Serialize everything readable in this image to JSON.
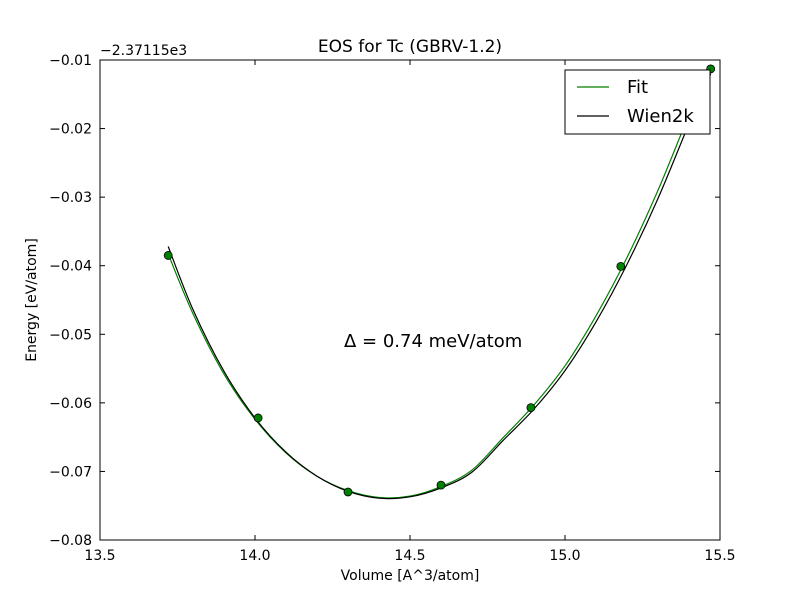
{
  "chart_data": {
    "type": "line",
    "title": "EOS for Tc (GBRV-1.2)",
    "xlabel": "Volume [A^3/atom]",
    "ylabel": "Energy [eV/atom]",
    "y_offset_label": "−2.37115e3",
    "y_offset": -2371.15,
    "xlim": [
      13.5,
      15.5
    ],
    "ylim": [
      -0.08,
      -0.01
    ],
    "xticks": [
      13.5,
      14.0,
      14.5,
      15.0,
      15.5
    ],
    "xtick_labels": [
      "13.5",
      "14.0",
      "14.5",
      "15.0",
      "15.5"
    ],
    "yticks": [
      -0.08,
      -0.07,
      -0.06,
      -0.05,
      -0.04,
      -0.03,
      -0.02,
      -0.01
    ],
    "ytick_labels": [
      "−0.08",
      "−0.07",
      "−0.06",
      "−0.05",
      "−0.04",
      "−0.03",
      "−0.02",
      "−0.01"
    ],
    "grid": false,
    "legend_position": "top-right",
    "annotation": "Δ = 0.74 meV/atom",
    "series": [
      {
        "name": "Fit",
        "kind": "line",
        "color": "#008000",
        "x": [
          13.72,
          13.8,
          13.9,
          14.0,
          14.1,
          14.2,
          14.3,
          14.4,
          14.5,
          14.6,
          14.7,
          14.8,
          14.9,
          15.0,
          15.1,
          15.2,
          15.3,
          15.4,
          15.47
        ],
        "y": [
          -0.0383,
          -0.047,
          -0.0558,
          -0.0624,
          -0.0673,
          -0.0707,
          -0.0728,
          -0.0738,
          -0.0736,
          -0.0722,
          -0.0698,
          -0.0651,
          -0.0603,
          -0.0546,
          -0.0473,
          -0.0388,
          -0.029,
          -0.018,
          -0.0108
        ]
      },
      {
        "name": "Wien2k",
        "kind": "line",
        "color": "#000000",
        "x": [
          13.72,
          13.8,
          13.9,
          14.0,
          14.1,
          14.2,
          14.3,
          14.4,
          14.5,
          14.6,
          14.7,
          14.8,
          14.9,
          15.0,
          15.1,
          15.2,
          15.3,
          15.4,
          15.47
        ],
        "y": [
          -0.0372,
          -0.0464,
          -0.0554,
          -0.0622,
          -0.0672,
          -0.0707,
          -0.0729,
          -0.0739,
          -0.0737,
          -0.0724,
          -0.0701,
          -0.0655,
          -0.0609,
          -0.0553,
          -0.0482,
          -0.0398,
          -0.0302,
          -0.0193,
          -0.012
        ]
      },
      {
        "kind": "scatter",
        "color": "#008000",
        "x": [
          13.72,
          14.01,
          14.3,
          14.6,
          14.89,
          15.18,
          15.47
        ],
        "y": [
          -0.0385,
          -0.0622,
          -0.073,
          -0.072,
          -0.0607,
          -0.0401,
          -0.0113
        ]
      }
    ]
  }
}
